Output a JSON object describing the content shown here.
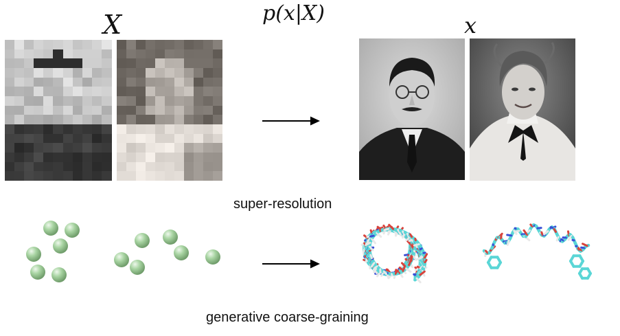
{
  "labels": {
    "formula": "p(x|X)",
    "coarse_symbol": "X",
    "fine_symbol": "x",
    "row1_caption": "super-resolution",
    "row2_caption": "generative coarse-graining"
  },
  "colors": {
    "arrow": "#000000",
    "bead": "#a8d4a2",
    "bead_highlight": "#e6f4e2",
    "bead_shadow": "#6f9c6a",
    "stick_carbon": "#5ad6d6",
    "stick_oxygen": "#d8433c",
    "stick_nitrogen": "#3a4fd6",
    "stick_hydrogen": "#e8e8e8"
  },
  "icons": {
    "arrow_top": "right-arrow-icon",
    "arrow_bottom": "right-arrow-icon"
  }
}
